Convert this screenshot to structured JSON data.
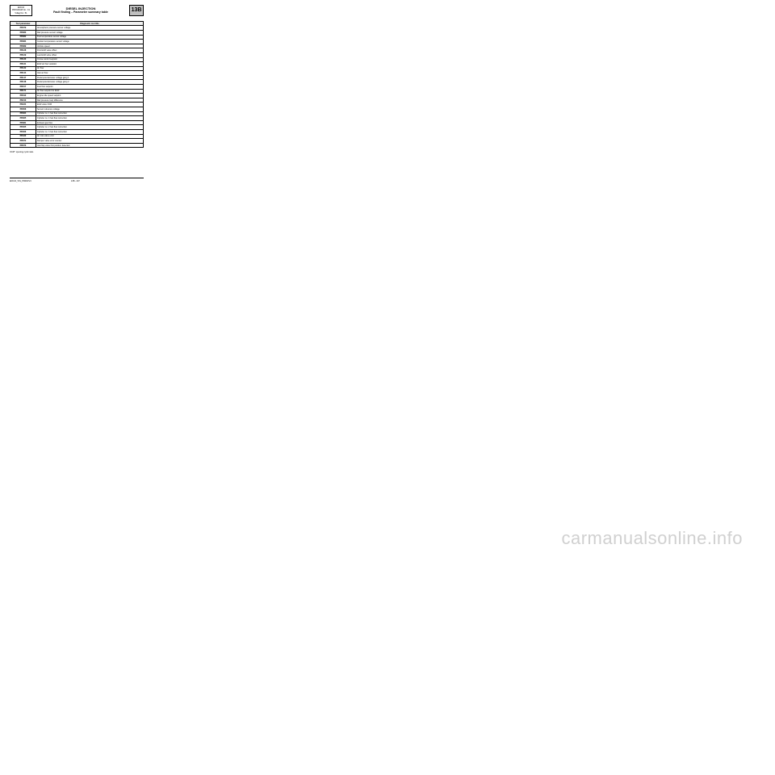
{
  "header": {
    "left_line1": "EDC16",
    "left_line2": "PROGRAM No.: C1",
    "left_line3": "Vdiag No.: 51",
    "title": "DIESEL INJECTION",
    "subtitle": "Fault finding – Parameter summary table",
    "code": "13B"
  },
  "table": {
    "col1_header": "Tool parameter",
    "col2_header": "Diagnostic tool title",
    "rows": [
      {
        "code": "PR079",
        "desc": "Atmospheric pressure sensor voltage"
      },
      {
        "code": "PR080",
        "desc": "Rail pressure sensor voltage"
      },
      {
        "code": "PR082",
        "desc": "Fuel temperature sensor voltage"
      },
      {
        "code": "PR084",
        "desc": "Coolant temperature sensor voltage"
      },
      {
        "code": "PR089",
        "desc": "Vehicle speed"
      },
      {
        "code": "PR128",
        "desc": "First EGR valve offset"
      },
      {
        "code": "PR129",
        "desc": "Last EGR valve offset"
      },
      {
        "code": "PR130",
        "desc": "Cruise control setpoint"
      },
      {
        "code": "PR131",
        "desc": "EGR air flow variation"
      },
      {
        "code": "PR132",
        "desc": "Air flow"
      },
      {
        "code": "PR144",
        "desc": "Inlet air flow"
      },
      {
        "code": "PR147",
        "desc": "Pedal potentiometer voltage gang 1"
      },
      {
        "code": "PR148",
        "desc": "Pedal potentiometer voltage gang 2"
      },
      {
        "code": "PR157",
        "desc": "Fuel flow setpoint"
      },
      {
        "code": "PR171",
        "desc": "Air flow setpoint for EGR"
      },
      {
        "code": "PR190",
        "desc": "Engine idle speed setpoint"
      },
      {
        "code": "PR213",
        "desc": "Rail pressure loop difference"
      },
      {
        "code": "PR224",
        "desc": "EGR valve OCR"
      },
      {
        "code": "PR358",
        "desc": "Sensor reference voltage"
      },
      {
        "code": "PR364",
        "desc": "Cylinder no. 1 fuel flow correction"
      },
      {
        "code": "PR365",
        "desc": "Cylinder no. 4 fuel flow correction"
      },
      {
        "code": "PR381",
        "desc": "Exhaust gas flow"
      },
      {
        "code": "PR405",
        "desc": "Cylinder no. 2 fuel flow correction"
      },
      {
        "code": "PR406",
        "desc": "Cylinder no. 3 fuel flow correction"
      },
      {
        "code": "PR420",
        "desc": "Air inlet valve error"
      },
      {
        "code": "PR672",
        "desc": "Damper valve error counter"
      },
      {
        "code": "PR673",
        "desc": "Inlet flap valve first position detected"
      }
    ]
  },
  "footnote": "OCR*: opening cyclic ratio.",
  "footer": {
    "doc_ref": "EDC16_V51_PR000/V4",
    "page_num": "13B - 207"
  },
  "watermark": "carmanualsonline.info"
}
